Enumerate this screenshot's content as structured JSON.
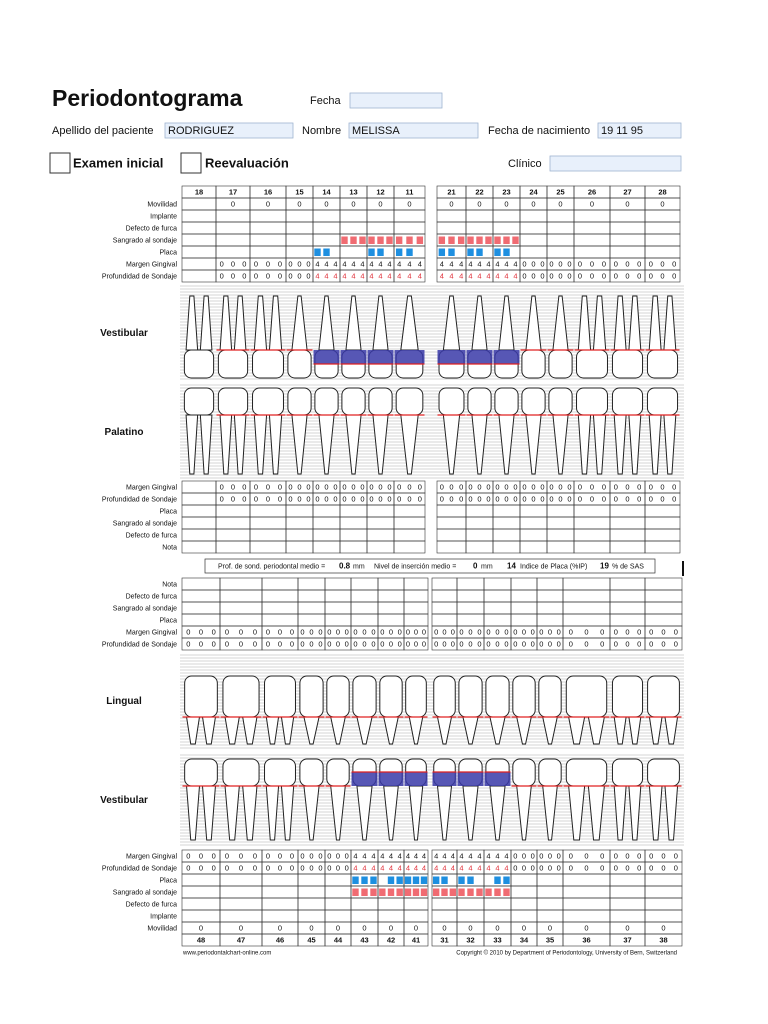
{
  "header": {
    "title": "Periodontograma",
    "fields": [
      {
        "label": "Fecha"
      },
      {
        "label": "Apellido del paciente",
        "value": "RODRIGUEZ"
      },
      {
        "label": "Nombre",
        "value": "MELISSA"
      },
      {
        "label": "Fecha de nacimiento",
        "value": "19 11 95"
      },
      {
        "label": "Clínico"
      }
    ],
    "checkboxes": [
      "Examen inicial",
      "Reevaluación"
    ]
  },
  "sections": [
    "Vestibular",
    "Palatino",
    "Lingual",
    "Vestibular"
  ],
  "upper": {
    "teeth": [
      18,
      17,
      16,
      15,
      14,
      13,
      12,
      11,
      21,
      22,
      23,
      24,
      25,
      26,
      27,
      28
    ],
    "rows": [
      {
        "label": "Movilidad",
        "values": [
          null,
          0,
          0,
          0,
          0,
          0,
          0,
          0,
          0,
          0,
          0,
          0,
          0,
          0,
          0,
          0
        ]
      },
      {
        "label": "Implante"
      },
      {
        "label": "Defecto de furca"
      },
      {
        "label": "Sangrado al sondaje",
        "color": "#f06b72",
        "sites": [
          null,
          null,
          null,
          null,
          null,
          [
            1,
            1,
            1
          ],
          [
            1,
            1,
            1
          ],
          [
            1,
            1,
            1
          ],
          [
            1,
            1,
            1
          ],
          [
            1,
            1,
            1
          ],
          [
            1,
            1,
            1
          ],
          null,
          null,
          null,
          null,
          null
        ]
      },
      {
        "label": "Placa",
        "color": "#1e8fe0",
        "sites": [
          null,
          null,
          null,
          null,
          [
            1,
            1,
            0
          ],
          null,
          [
            1,
            1,
            0
          ],
          [
            1,
            1,
            0
          ],
          [
            1,
            1,
            0
          ],
          [
            1,
            1,
            0
          ],
          [
            1,
            1,
            0
          ],
          null,
          null,
          null,
          null,
          null
        ]
      },
      {
        "label": "Margen Gingival",
        "values": [
          null,
          [
            0,
            0,
            0
          ],
          [
            0,
            0,
            0
          ],
          [
            0,
            0,
            0
          ],
          [
            4,
            4,
            4
          ],
          [
            4,
            4,
            4
          ],
          [
            4,
            4,
            4
          ],
          [
            4,
            4,
            4
          ],
          [
            4,
            4,
            4
          ],
          [
            4,
            4,
            4
          ],
          [
            4,
            4,
            4
          ],
          [
            0,
            0,
            0
          ],
          [
            0,
            0,
            0
          ],
          [
            0,
            0,
            0
          ],
          [
            0,
            0,
            0
          ],
          [
            0,
            0,
            0
          ]
        ]
      },
      {
        "label": "Profundidad de Sondaje",
        "alert_color": "#e0303a",
        "values": [
          null,
          [
            0,
            0,
            0
          ],
          [
            0,
            0,
            0
          ],
          [
            0,
            0,
            0
          ],
          [
            4,
            4,
            4
          ],
          [
            4,
            4,
            4
          ],
          [
            4,
            4,
            4
          ],
          [
            4,
            4,
            4
          ],
          [
            4,
            4,
            4
          ],
          [
            4,
            4,
            4
          ],
          [
            4,
            4,
            4
          ],
          [
            0,
            0,
            0
          ],
          [
            0,
            0,
            0
          ],
          [
            0,
            0,
            0
          ],
          [
            0,
            0,
            0
          ],
          [
            0,
            0,
            0
          ]
        ]
      }
    ]
  },
  "palatal": {
    "rows": [
      {
        "label": "Margen Gingival",
        "values": [
          null,
          [
            0,
            0,
            0
          ],
          [
            0,
            0,
            0
          ],
          [
            0,
            0,
            0
          ],
          [
            0,
            0,
            0
          ],
          [
            0,
            0,
            0
          ],
          [
            0,
            0,
            0
          ],
          [
            0,
            0,
            0
          ],
          [
            0,
            0,
            0
          ],
          [
            0,
            0,
            0
          ],
          [
            0,
            0,
            0
          ],
          [
            0,
            0,
            0
          ],
          [
            0,
            0,
            0
          ],
          [
            0,
            0,
            0
          ],
          [
            0,
            0,
            0
          ],
          [
            0,
            0,
            0
          ]
        ]
      },
      {
        "label": "Profundidad de Sondaje",
        "alert_color": "#e0303a",
        "values": [
          null,
          [
            0,
            0,
            0
          ],
          [
            0,
            0,
            0
          ],
          [
            0,
            0,
            0
          ],
          [
            0,
            0,
            0
          ],
          [
            0,
            0,
            0
          ],
          [
            0,
            0,
            0
          ],
          [
            0,
            0,
            0
          ],
          [
            0,
            0,
            0
          ],
          [
            0,
            0,
            0
          ],
          [
            0,
            0,
            0
          ],
          [
            0,
            0,
            0
          ],
          [
            0,
            0,
            0
          ],
          [
            0,
            0,
            0
          ],
          [
            0,
            0,
            0
          ],
          [
            0,
            0,
            0
          ]
        ]
      },
      {
        "label": "Placa"
      },
      {
        "label": "Sangrado al sondaje"
      },
      {
        "label": "Defecto de furca"
      },
      {
        "label": "Nota"
      }
    ]
  },
  "summary": {
    "prof_label": "Prof. de sond. periodontal medio =",
    "prof_value": 0.8,
    "unit": "mm",
    "nivel_label": "Nivel de inserción medio =",
    "nivel_value": 0,
    "ip_value": 14,
    "ip_label": "Indice de Placa (%IP)",
    "sas_value": 19,
    "sas_label": "% de SAS"
  },
  "lingual": {
    "rows": [
      {
        "label": "Nota"
      },
      {
        "label": "Defecto de furca"
      },
      {
        "label": "Sangrado al sondaje"
      },
      {
        "label": "Placa"
      },
      {
        "label": "Margen Gingival",
        "values": [
          [
            0,
            0,
            0
          ],
          [
            0,
            0,
            0
          ],
          [
            0,
            0,
            0
          ],
          [
            0,
            0,
            0
          ],
          [
            0,
            0,
            0
          ],
          [
            0,
            0,
            0
          ],
          [
            0,
            0,
            0
          ],
          [
            0,
            0,
            0
          ],
          [
            0,
            0,
            0
          ],
          [
            0,
            0,
            0
          ],
          [
            0,
            0,
            0
          ],
          [
            0,
            0,
            0
          ],
          [
            0,
            0,
            0
          ],
          [
            0,
            0,
            0
          ],
          [
            0,
            0,
            0
          ],
          [
            0,
            0,
            0
          ]
        ]
      },
      {
        "label": "Profundidad de Sondaje",
        "alert_color": "#e0303a",
        "values": [
          [
            0,
            0,
            0
          ],
          [
            0,
            0,
            0
          ],
          [
            0,
            0,
            0
          ],
          [
            0,
            0,
            0
          ],
          [
            0,
            0,
            0
          ],
          [
            0,
            0,
            0
          ],
          [
            0,
            0,
            0
          ],
          [
            0,
            0,
            0
          ],
          [
            0,
            0,
            0
          ],
          [
            0,
            0,
            0
          ],
          [
            0,
            0,
            0
          ],
          [
            0,
            0,
            0
          ],
          [
            0,
            0,
            0
          ],
          [
            0,
            0,
            0
          ],
          [
            0,
            0,
            0
          ],
          [
            0,
            0,
            0
          ]
        ]
      }
    ]
  },
  "lower": {
    "teeth": [
      48,
      47,
      46,
      45,
      44,
      43,
      42,
      41,
      31,
      32,
      33,
      34,
      35,
      36,
      37,
      38
    ],
    "rows": [
      {
        "label": "Margen Gingival",
        "values": [
          [
            0,
            0,
            0
          ],
          [
            0,
            0,
            0
          ],
          [
            0,
            0,
            0
          ],
          [
            0,
            0,
            0
          ],
          [
            0,
            0,
            0
          ],
          [
            4,
            4,
            4
          ],
          [
            4,
            4,
            4
          ],
          [
            4,
            4,
            4
          ],
          [
            4,
            4,
            4
          ],
          [
            4,
            4,
            4
          ],
          [
            4,
            4,
            4
          ],
          [
            0,
            0,
            0
          ],
          [
            0,
            0,
            0
          ],
          [
            0,
            0,
            0
          ],
          [
            0,
            0,
            0
          ],
          [
            0,
            0,
            0
          ]
        ]
      },
      {
        "label": "Profundidad de Sondaje",
        "alert_color": "#e0303a",
        "values": [
          [
            0,
            0,
            0
          ],
          [
            0,
            0,
            0
          ],
          [
            0,
            0,
            0
          ],
          [
            0,
            0,
            0
          ],
          [
            0,
            0,
            0
          ],
          [
            4,
            4,
            4
          ],
          [
            4,
            4,
            4
          ],
          [
            4,
            4,
            4
          ],
          [
            4,
            4,
            4
          ],
          [
            4,
            4,
            4
          ],
          [
            4,
            4,
            4
          ],
          [
            0,
            0,
            0
          ],
          [
            0,
            0,
            0
          ],
          [
            0,
            0,
            0
          ],
          [
            0,
            0,
            0
          ],
          [
            0,
            0,
            0
          ]
        ]
      },
      {
        "label": "Placa",
        "color": "#1e8fe0",
        "sites": [
          null,
          null,
          null,
          null,
          null,
          [
            1,
            1,
            1
          ],
          [
            0,
            1,
            1
          ],
          [
            1,
            1,
            1
          ],
          [
            1,
            1,
            0
          ],
          [
            1,
            1,
            0
          ],
          [
            0,
            1,
            1
          ],
          null,
          null,
          null,
          null,
          null
        ]
      },
      {
        "label": "Sangrado al sondaje",
        "color": "#f06b72",
        "sites": [
          null,
          null,
          null,
          null,
          null,
          [
            1,
            1,
            1
          ],
          [
            1,
            1,
            1
          ],
          [
            1,
            1,
            1
          ],
          [
            1,
            1,
            1
          ],
          [
            1,
            1,
            1
          ],
          [
            1,
            1,
            1
          ],
          null,
          null,
          null,
          null,
          null
        ]
      },
      {
        "label": "Defecto de furca"
      },
      {
        "label": "Implante"
      },
      {
        "label": "Movilidad",
        "values": [
          0,
          0,
          0,
          0,
          0,
          0,
          0,
          0,
          0,
          0,
          0,
          0,
          0,
          0,
          0,
          0
        ]
      }
    ]
  },
  "footer": {
    "left": "www.periodontalchart-online.com",
    "right": "Copyright © 2010 by Department of Periodontology, University of Bern, Switzerland"
  }
}
